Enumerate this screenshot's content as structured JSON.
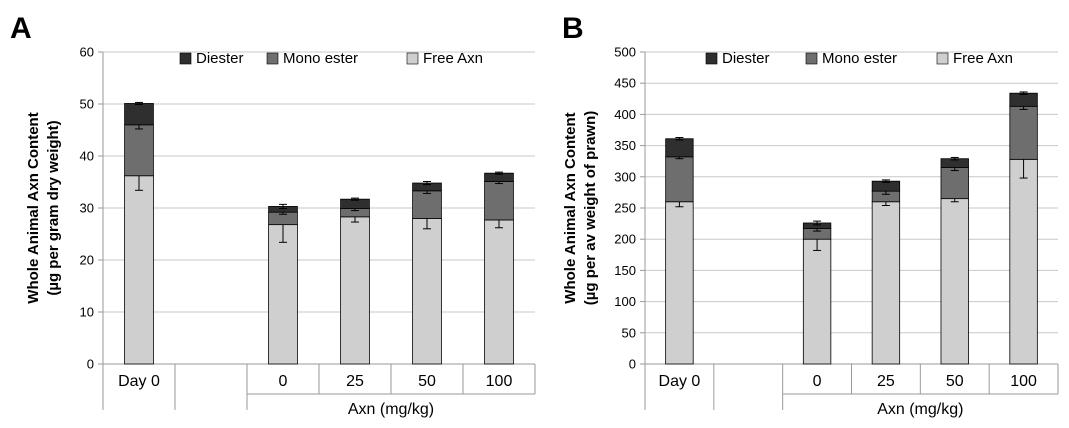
{
  "colors": {
    "diester": "#2f2f2f",
    "mono_ester": "#6e6e6e",
    "free_axn": "#cfcfcf",
    "axis": "#9a9a9a"
  },
  "chart_data": [
    {
      "type": "bar",
      "stacked": true,
      "panel_label": "A",
      "title": "",
      "ylabel_line1": "Whole Animal Axn Content",
      "ylabel_line2": "(µg per gram dry weight)",
      "xlabel": "Axn (mg/kg)",
      "ylim": [
        0,
        60
      ],
      "yticks": [
        0,
        10,
        20,
        30,
        40,
        50,
        60
      ],
      "categories": [
        "Day 0",
        "",
        "0",
        "25",
        "50",
        "100"
      ],
      "legend": [
        "Diester",
        "Mono ester",
        "Free Axn"
      ],
      "legend_position": "top",
      "grid": true,
      "series": [
        {
          "name": "Free Axn",
          "key": "free_axn",
          "values": [
            36.2,
            null,
            26.8,
            28.3,
            28.0,
            27.7
          ],
          "err": [
            2.8,
            null,
            3.4,
            1.0,
            2.0,
            1.5
          ]
        },
        {
          "name": "Mono ester",
          "key": "mono_ester",
          "values": [
            9.8,
            null,
            2.4,
            1.6,
            5.3,
            7.4
          ],
          "err": [
            0.8,
            null,
            0.4,
            0.4,
            0.5,
            0.4
          ]
        },
        {
          "name": "Diester",
          "key": "diester",
          "values": [
            4.1,
            null,
            1.1,
            1.8,
            1.5,
            1.6
          ],
          "err": [
            0.2,
            null,
            0.4,
            0.2,
            0.3,
            0.2
          ]
        }
      ]
    },
    {
      "type": "bar",
      "stacked": true,
      "panel_label": "B",
      "title": "",
      "ylabel_line1": "Whole Animal Axn Content",
      "ylabel_line2": "(µg per av weight of prawn)",
      "xlabel": "Axn (mg/kg)",
      "ylim": [
        0,
        500
      ],
      "yticks": [
        0,
        50,
        100,
        150,
        200,
        250,
        300,
        350,
        400,
        450,
        500
      ],
      "categories": [
        "Day 0",
        "",
        "0",
        "25",
        "50",
        "100"
      ],
      "legend": [
        "Diester",
        "Mono ester",
        "Free Axn"
      ],
      "legend_position": "top",
      "grid": true,
      "series": [
        {
          "name": "Free Axn",
          "key": "free_axn",
          "values": [
            260,
            null,
            200,
            260,
            265,
            328
          ],
          "err": [
            8,
            null,
            18,
            6,
            5,
            30
          ]
        },
        {
          "name": "Mono ester",
          "key": "mono_ester",
          "values": [
            72,
            null,
            17,
            17,
            50,
            85
          ],
          "err": [
            3,
            null,
            4,
            5,
            5,
            5
          ]
        },
        {
          "name": "Diester",
          "key": "diester",
          "values": [
            29,
            null,
            9,
            16,
            14,
            21
          ],
          "err": [
            2,
            null,
            3,
            2,
            2,
            2
          ]
        }
      ]
    }
  ]
}
